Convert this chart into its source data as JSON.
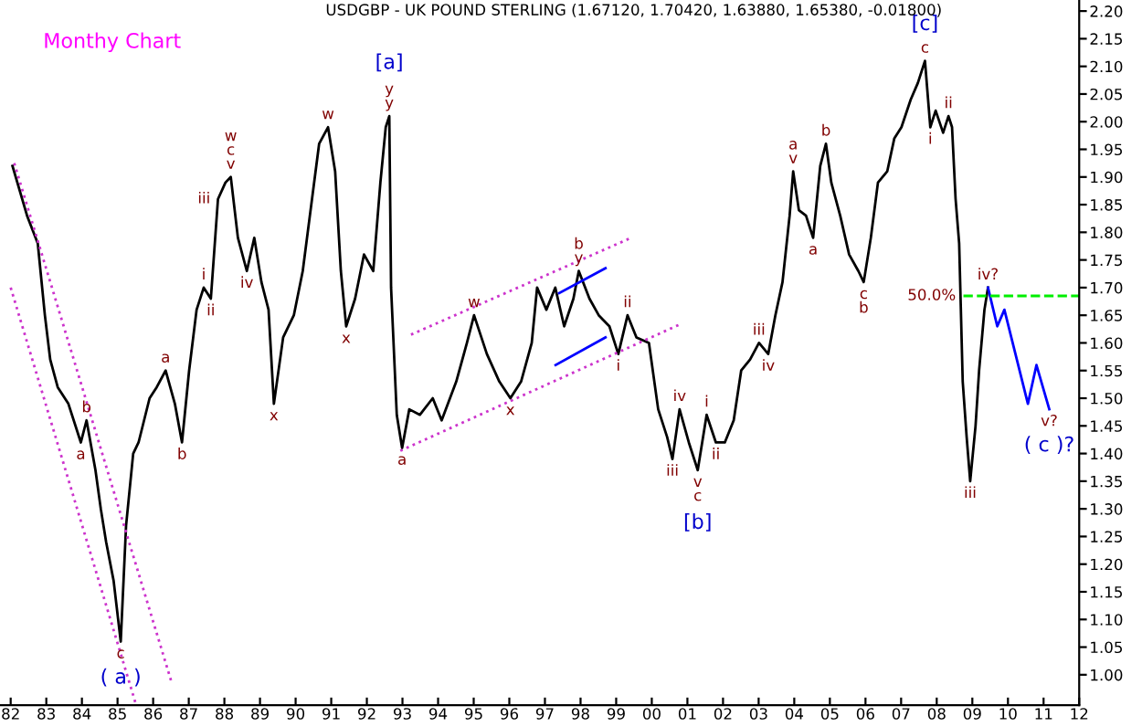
{
  "chart_data": {
    "type": "line",
    "title": "USDGBP - UK POUND STERLING (1.67120, 1.70420, 1.63880, 1.65380, -0.01800)",
    "subtitle": "Monthy Chart",
    "xlim": [
      1981.7,
      2012
    ],
    "ylim": [
      0.945,
      2.22
    ],
    "xticks": [
      {
        "value": 1982,
        "label": "82"
      },
      {
        "value": 1983,
        "label": "83"
      },
      {
        "value": 1984,
        "label": "84"
      },
      {
        "value": 1985,
        "label": "85"
      },
      {
        "value": 1986,
        "label": "86"
      },
      {
        "value": 1987,
        "label": "87"
      },
      {
        "value": 1988,
        "label": "88"
      },
      {
        "value": 1989,
        "label": "89"
      },
      {
        "value": 1990,
        "label": "90"
      },
      {
        "value": 1991,
        "label": "91"
      },
      {
        "value": 1992,
        "label": "92"
      },
      {
        "value": 1993,
        "label": "93"
      },
      {
        "value": 1994,
        "label": "94"
      },
      {
        "value": 1995,
        "label": "95"
      },
      {
        "value": 1996,
        "label": "96"
      },
      {
        "value": 1997,
        "label": "97"
      },
      {
        "value": 1998,
        "label": "98"
      },
      {
        "value": 1999,
        "label": "99"
      },
      {
        "value": 2000,
        "label": "00"
      },
      {
        "value": 2001,
        "label": "01"
      },
      {
        "value": 2002,
        "label": "02"
      },
      {
        "value": 2003,
        "label": "03"
      },
      {
        "value": 2004,
        "label": "04"
      },
      {
        "value": 2005,
        "label": "05"
      },
      {
        "value": 2006,
        "label": "06"
      },
      {
        "value": 2007,
        "label": "07"
      },
      {
        "value": 2008,
        "label": "08"
      },
      {
        "value": 2009,
        "label": "09"
      },
      {
        "value": 2010,
        "label": "10"
      },
      {
        "value": 2011,
        "label": "11"
      },
      {
        "value": 2012,
        "label": "12"
      }
    ],
    "yticks": [
      {
        "value": 1.0,
        "label": "1.00"
      },
      {
        "value": 1.05,
        "label": "1.05"
      },
      {
        "value": 1.1,
        "label": "1.10"
      },
      {
        "value": 1.15,
        "label": "1.15"
      },
      {
        "value": 1.2,
        "label": "1.20"
      },
      {
        "value": 1.25,
        "label": "1.25"
      },
      {
        "value": 1.3,
        "label": "1.30"
      },
      {
        "value": 1.35,
        "label": "1.35"
      },
      {
        "value": 1.4,
        "label": "1.40"
      },
      {
        "value": 1.45,
        "label": "1.45"
      },
      {
        "value": 1.5,
        "label": "1.50"
      },
      {
        "value": 1.55,
        "label": "1.55"
      },
      {
        "value": 1.6,
        "label": "1.60"
      },
      {
        "value": 1.65,
        "label": "1.65"
      },
      {
        "value": 1.7,
        "label": "1.70"
      },
      {
        "value": 1.75,
        "label": "1.75"
      },
      {
        "value": 1.8,
        "label": "1.80"
      },
      {
        "value": 1.85,
        "label": "1.85"
      },
      {
        "value": 1.9,
        "label": "1.90"
      },
      {
        "value": 1.95,
        "label": "1.95"
      },
      {
        "value": 2.0,
        "label": "2.00"
      },
      {
        "value": 2.05,
        "label": "2.05"
      },
      {
        "value": 2.1,
        "label": "2.10"
      },
      {
        "value": 2.15,
        "label": "2.15"
      },
      {
        "value": 2.2,
        "label": "2.20"
      }
    ],
    "grid": false,
    "legend": false,
    "series": [
      {
        "color": "#000000",
        "line_style": "solid",
        "x": [
          1982.05,
          1982.46,
          1982.76,
          1982.96,
          1983.11,
          1983.32,
          1983.62,
          1983.97,
          1984.13,
          1984.38,
          1984.53,
          1984.68,
          1984.89,
          1985.09,
          1985.24,
          1985.44,
          1985.59,
          1985.9,
          1986.1,
          1986.35,
          1986.61,
          1986.81,
          1987.01,
          1987.22,
          1987.42,
          1987.62,
          1987.82,
          1988.03,
          1988.18,
          1988.38,
          1988.63,
          1988.84,
          1989.04,
          1989.24,
          1989.39,
          1989.65,
          1989.95,
          1990.2,
          1990.46,
          1990.66,
          1990.91,
          1991.11,
          1991.27,
          1991.42,
          1991.67,
          1991.92,
          1992.18,
          1992.38,
          1992.53,
          1992.63,
          1992.68,
          1992.84,
          1992.99,
          1993.19,
          1993.49,
          1993.85,
          1994.1,
          1994.51,
          1994.81,
          1995.01,
          1995.37,
          1995.72,
          1996.03,
          1996.33,
          1996.63,
          1996.78,
          1997.04,
          1997.29,
          1997.54,
          1997.8,
          1997.95,
          1998.25,
          1998.51,
          1998.81,
          1999.06,
          1999.32,
          1999.57,
          1999.92,
          2000.18,
          2000.43,
          2000.58,
          2000.78,
          2001.04,
          2001.29,
          2001.54,
          2001.8,
          2002.05,
          2002.3,
          2002.51,
          2002.76,
          2003.01,
          2003.27,
          2003.47,
          2003.67,
          2003.87,
          2003.97,
          2004.13,
          2004.33,
          2004.53,
          2004.73,
          2004.89,
          2005.04,
          2005.29,
          2005.54,
          2005.8,
          2005.95,
          2006.15,
          2006.35,
          2006.61,
          2006.81,
          2007.01,
          2007.27,
          2007.47,
          2007.67,
          2007.82,
          2007.97,
          2008.18,
          2008.33,
          2008.43,
          2008.53,
          2008.63,
          2008.73,
          2008.84,
          2008.94,
          2009.09,
          2009.19,
          2009.34,
          2009.44
        ],
        "values": [
          1.92,
          1.83,
          1.78,
          1.65,
          1.57,
          1.52,
          1.49,
          1.42,
          1.46,
          1.37,
          1.3,
          1.24,
          1.17,
          1.06,
          1.27,
          1.4,
          1.42,
          1.5,
          1.52,
          1.55,
          1.49,
          1.42,
          1.55,
          1.66,
          1.7,
          1.68,
          1.86,
          1.89,
          1.9,
          1.79,
          1.73,
          1.79,
          1.71,
          1.66,
          1.49,
          1.61,
          1.65,
          1.73,
          1.86,
          1.96,
          1.99,
          1.91,
          1.73,
          1.63,
          1.68,
          1.76,
          1.73,
          1.89,
          1.99,
          2.01,
          1.7,
          1.47,
          1.41,
          1.48,
          1.47,
          1.5,
          1.46,
          1.53,
          1.6,
          1.65,
          1.58,
          1.53,
          1.5,
          1.53,
          1.6,
          1.7,
          1.66,
          1.7,
          1.63,
          1.68,
          1.73,
          1.68,
          1.65,
          1.63,
          1.58,
          1.65,
          1.61,
          1.6,
          1.48,
          1.43,
          1.39,
          1.48,
          1.42,
          1.37,
          1.47,
          1.42,
          1.42,
          1.46,
          1.55,
          1.57,
          1.6,
          1.58,
          1.65,
          1.71,
          1.83,
          1.91,
          1.84,
          1.83,
          1.79,
          1.92,
          1.96,
          1.89,
          1.83,
          1.76,
          1.73,
          1.71,
          1.79,
          1.89,
          1.91,
          1.97,
          1.99,
          2.04,
          2.07,
          2.11,
          1.99,
          2.02,
          1.98,
          2.01,
          1.99,
          1.86,
          1.78,
          1.53,
          1.43,
          1.35,
          1.45,
          1.55,
          1.66,
          1.7
        ]
      },
      {
        "color": "#0000ff",
        "line_style": "solid",
        "x": [
          2009.44,
          2009.7,
          2009.9,
          2010.56,
          2010.8,
          2011.16
        ],
        "values": [
          1.7,
          1.63,
          1.66,
          1.49,
          1.56,
          1.48
        ]
      },
      {
        "color": "#cc33cc",
        "line_style": "dotted",
        "x": [
          1982.1,
          1986.5
        ],
        "values": [
          1.925,
          0.99
        ]
      },
      {
        "color": "#cc33cc",
        "line_style": "dotted",
        "x": [
          1982.0,
          1985.5
        ],
        "values": [
          1.7,
          0.95
        ]
      },
      {
        "color": "#cc33cc",
        "line_style": "dotted",
        "x": [
          1993.24,
          1999.42
        ],
        "values": [
          1.615,
          1.79
        ]
      },
      {
        "color": "#cc33cc",
        "line_style": "dotted",
        "x": [
          1992.94,
          2000.84
        ],
        "values": [
          1.405,
          1.635
        ]
      },
      {
        "color": "#0000ff",
        "line_style": "solid",
        "x": [
          1997.4,
          1998.7
        ],
        "values": [
          1.69,
          1.735
        ]
      },
      {
        "color": "#0000ff",
        "line_style": "solid",
        "x": [
          1997.3,
          1998.7
        ],
        "values": [
          1.56,
          1.61
        ]
      },
      {
        "color": "#00ee00",
        "line_style": "dashed",
        "x": [
          2008.75,
          2012
        ],
        "values": [
          1.685,
          1.685
        ]
      }
    ],
    "annotations": [
      {
        "text": "a",
        "x": 1983.97,
        "y": 1.42
      },
      {
        "text": "b",
        "x": 1984.13,
        "y": 1.46
      },
      {
        "text": "c",
        "x": 1985.09,
        "y": 1.06
      },
      {
        "text": "( a )",
        "x": 1985.09,
        "y": 1.06
      },
      {
        "text": "a",
        "x": 1986.35,
        "y": 1.55
      },
      {
        "text": "b",
        "x": 1986.81,
        "y": 1.42
      },
      {
        "text": "i",
        "x": 1987.42,
        "y": 1.7
      },
      {
        "text": "ii",
        "x": 1987.62,
        "y": 1.68
      },
      {
        "text": "iii",
        "x": 1987.82,
        "y": 1.86
      },
      {
        "text": "v",
        "x": 1988.18,
        "y": 1.9
      },
      {
        "text": "c",
        "x": 1988.18,
        "y": 1.9
      },
      {
        "text": "w",
        "x": 1988.18,
        "y": 1.9
      },
      {
        "text": "iv",
        "x": 1988.63,
        "y": 1.73
      },
      {
        "text": "x",
        "x": 1989.39,
        "y": 1.49
      },
      {
        "text": "w",
        "x": 1990.91,
        "y": 1.99
      },
      {
        "text": "x",
        "x": 1991.42,
        "y": 1.63
      },
      {
        "text": "y",
        "x": 1992.63,
        "y": 2.01
      },
      {
        "text": "y",
        "x": 1992.63,
        "y": 2.01
      },
      {
        "text": "[a]",
        "x": 1992.63,
        "y": 2.01
      },
      {
        "text": "a",
        "x": 1992.99,
        "y": 1.41
      },
      {
        "text": "w",
        "x": 1995.01,
        "y": 1.65
      },
      {
        "text": "x",
        "x": 1996.03,
        "y": 1.5
      },
      {
        "text": "y",
        "x": 1997.95,
        "y": 1.73
      },
      {
        "text": "b",
        "x": 1997.95,
        "y": 1.73
      },
      {
        "text": "i",
        "x": 1999.06,
        "y": 1.58
      },
      {
        "text": "ii",
        "x": 1999.32,
        "y": 1.65
      },
      {
        "text": "iii",
        "x": 2000.58,
        "y": 1.39
      },
      {
        "text": "iv",
        "x": 2000.78,
        "y": 1.48
      },
      {
        "text": "v",
        "x": 2001.29,
        "y": 1.37
      },
      {
        "text": "c",
        "x": 2001.29,
        "y": 1.37
      },
      {
        "text": "[b]",
        "x": 2001.29,
        "y": 1.37
      },
      {
        "text": "i",
        "x": 2001.54,
        "y": 1.47
      },
      {
        "text": "ii",
        "x": 2001.8,
        "y": 1.42
      },
      {
        "text": "iii",
        "x": 2003.01,
        "y": 1.6
      },
      {
        "text": "iv",
        "x": 2003.27,
        "y": 1.58
      },
      {
        "text": "v",
        "x": 2003.97,
        "y": 1.91
      },
      {
        "text": "a",
        "x": 2003.97,
        "y": 1.91
      },
      {
        "text": "a",
        "x": 2004.53,
        "y": 1.79
      },
      {
        "text": "b",
        "x": 2004.89,
        "y": 1.96
      },
      {
        "text": "c",
        "x": 2005.95,
        "y": 1.71
      },
      {
        "text": "b",
        "x": 2005.95,
        "y": 1.71
      },
      {
        "text": "c",
        "x": 2007.67,
        "y": 2.11
      },
      {
        "text": "[c]",
        "x": 2007.67,
        "y": 2.11
      },
      {
        "text": "i",
        "x": 2007.82,
        "y": 1.99
      },
      {
        "text": "ii",
        "x": 2008.33,
        "y": 2.01
      },
      {
        "text": "iii",
        "x": 2008.94,
        "y": 1.35
      },
      {
        "text": "iv?",
        "x": 2009.44,
        "y": 1.7
      },
      {
        "text": "50.0%",
        "x": 2008.75,
        "y": 1.685
      },
      {
        "text": "v?",
        "x": 2011.16,
        "y": 1.48
      },
      {
        "text": "( c )?",
        "x": 2011.16,
        "y": 1.48
      }
    ]
  }
}
